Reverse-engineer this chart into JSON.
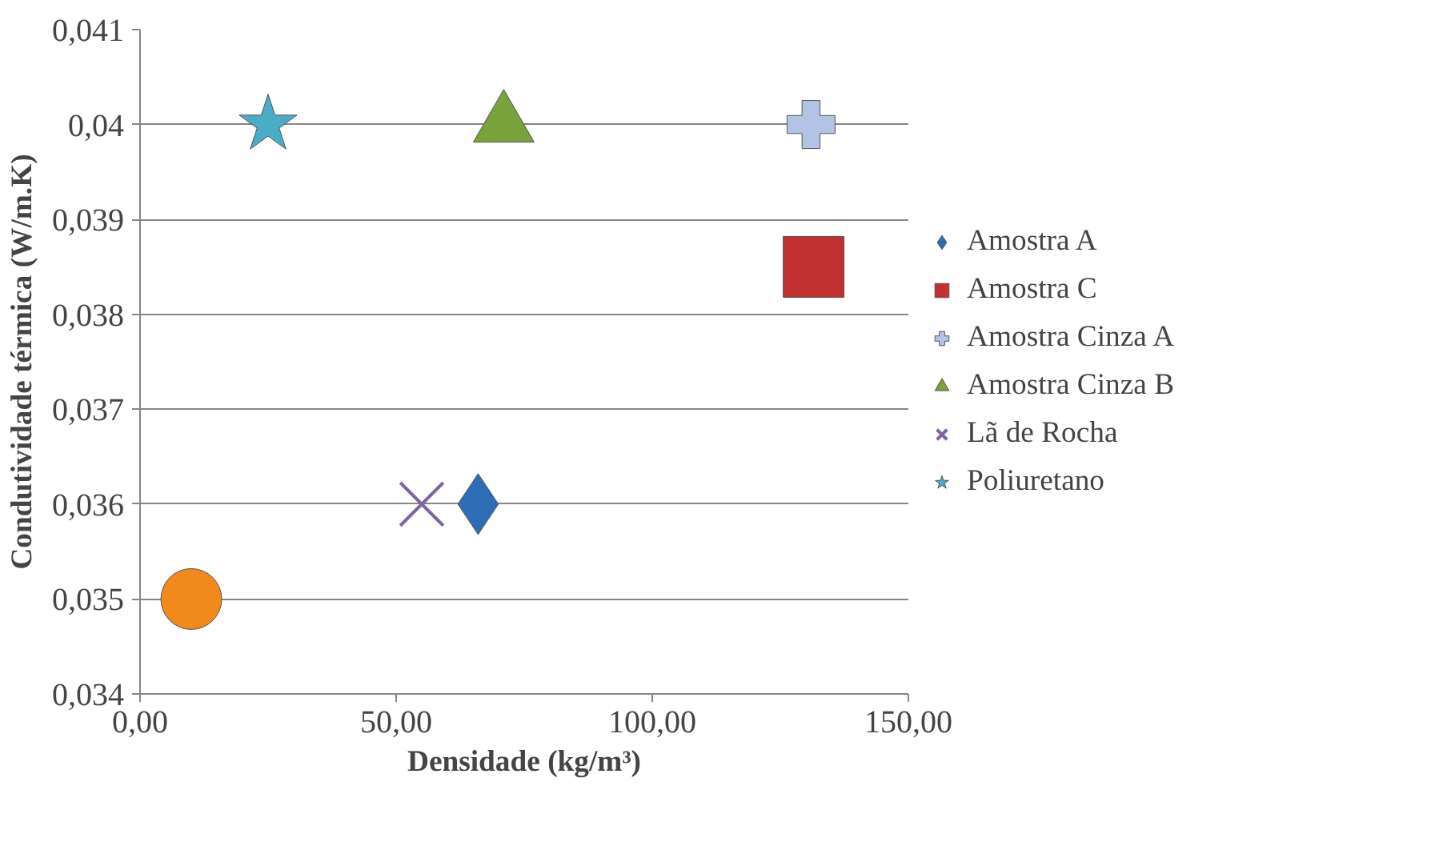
{
  "chart_data": {
    "type": "scatter",
    "xlabel": "Densidade (kg/m³)",
    "ylabel": "Condutividade térmica (W/m.K)",
    "xlim": [
      0,
      150
    ],
    "xticks": [
      {
        "value": 0,
        "label": "0,00"
      },
      {
        "value": 50,
        "label": "50,00"
      },
      {
        "value": 100,
        "label": "100,00"
      },
      {
        "value": 150,
        "label": "150,00"
      }
    ],
    "ylim": [
      0.034,
      0.041
    ],
    "yticks": [
      {
        "value": 0.034,
        "label": "0,034"
      },
      {
        "value": 0.035,
        "label": "0,035"
      },
      {
        "value": 0.036,
        "label": "0,036"
      },
      {
        "value": 0.037,
        "label": "0,037"
      },
      {
        "value": 0.038,
        "label": "0,038"
      },
      {
        "value": 0.039,
        "label": "0,039"
      },
      {
        "value": 0.04,
        "label": "0,04"
      },
      {
        "value": 0.041,
        "label": "0,041"
      }
    ],
    "grid": "y",
    "legend": "right",
    "series": [
      {
        "name": "Amostra A",
        "color": "#2e6db5",
        "marker": "diamond",
        "x": [
          66
        ],
        "values": [
          0.036
        ]
      },
      {
        "name": "Amostra C",
        "color": "#c0312f",
        "marker": "square",
        "x": [
          131.5
        ],
        "values": [
          0.0385
        ]
      },
      {
        "name": "Amostra Cinza A",
        "color": "#b3c3e6",
        "marker": "cross",
        "x": [
          131
        ],
        "values": [
          0.04
        ]
      },
      {
        "name": "Amostra Cinza B",
        "color": "#77a33a",
        "marker": "triangle",
        "x": [
          71
        ],
        "values": [
          0.04
        ]
      },
      {
        "name": "Lã de Rocha",
        "color": "#8064a2",
        "marker": "x",
        "x": [
          55
        ],
        "values": [
          0.036
        ]
      },
      {
        "name": "Poliuretano",
        "color": "#4bacc6",
        "marker": "star",
        "x": [
          25
        ],
        "values": [
          0.04
        ]
      },
      {
        "color": "#f08a1d",
        "marker": "circle",
        "x": [
          10
        ],
        "values": [
          0.035
        ]
      }
    ]
  }
}
